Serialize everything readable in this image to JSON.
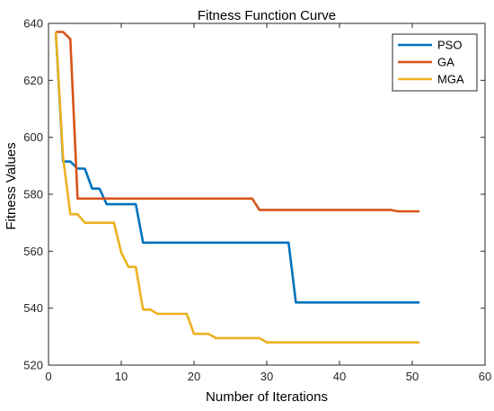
{
  "chart_data": {
    "type": "line",
    "title": "Fitness Function Curve",
    "xlabel": "Number of Iterations",
    "ylabel": "Fitness Values",
    "xlim": [
      0,
      60
    ],
    "ylim": [
      520,
      640
    ],
    "xticks": [
      0,
      10,
      20,
      30,
      40,
      50,
      60
    ],
    "yticks": [
      520,
      540,
      560,
      580,
      600,
      620,
      640
    ],
    "grid": false,
    "legend_position": "top-right",
    "series": [
      {
        "name": "PSO",
        "color": "#0072BD",
        "points": [
          [
            1,
            637
          ],
          [
            2,
            591.5
          ],
          [
            3,
            591.5
          ],
          [
            4,
            589
          ],
          [
            5,
            589
          ],
          [
            6,
            582
          ],
          [
            7,
            582
          ],
          [
            8,
            576.5
          ],
          [
            12,
            576.5
          ],
          [
            13,
            563
          ],
          [
            33,
            563
          ],
          [
            34,
            542
          ],
          [
            51,
            542
          ]
        ]
      },
      {
        "name": "GA",
        "color": "#D95319",
        "points": [
          [
            1,
            637
          ],
          [
            2,
            637
          ],
          [
            3,
            634.5
          ],
          [
            4,
            578.5
          ],
          [
            28,
            578.5
          ],
          [
            29,
            574.5
          ],
          [
            47,
            574.5
          ],
          [
            48,
            574
          ],
          [
            51,
            574
          ]
        ]
      },
      {
        "name": "MGA",
        "color": "#EDB120",
        "points": [
          [
            1,
            637
          ],
          [
            2,
            593
          ],
          [
            3,
            573
          ],
          [
            4,
            573
          ],
          [
            5,
            570
          ],
          [
            9,
            570
          ],
          [
            10,
            559.5
          ],
          [
            11,
            554.5
          ],
          [
            12,
            554.5
          ],
          [
            13,
            539.5
          ],
          [
            14,
            539.5
          ],
          [
            15,
            538
          ],
          [
            19,
            538
          ],
          [
            20,
            531
          ],
          [
            21,
            531
          ],
          [
            22,
            531
          ],
          [
            23,
            529.5
          ],
          [
            29,
            529.5
          ],
          [
            30,
            528
          ],
          [
            51,
            528
          ]
        ]
      }
    ]
  }
}
